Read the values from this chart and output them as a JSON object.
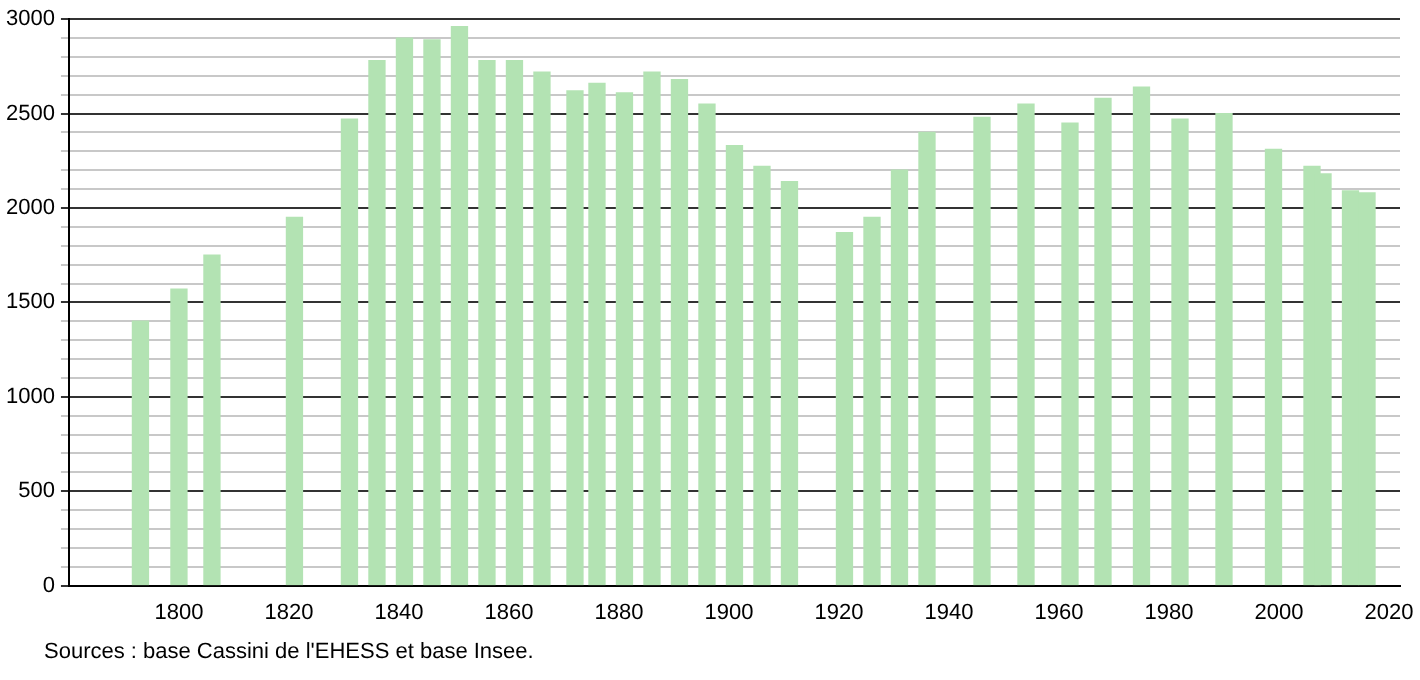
{
  "chart_data": {
    "type": "bar",
    "x": [
      1793,
      1800,
      1806,
      1821,
      1831,
      1836,
      1841,
      1846,
      1851,
      1856,
      1861,
      1866,
      1872,
      1876,
      1881,
      1886,
      1891,
      1896,
      1901,
      1906,
      1911,
      1921,
      1926,
      1931,
      1936,
      1946,
      1954,
      1962,
      1968,
      1975,
      1982,
      1990,
      1999,
      2006,
      2008,
      2013,
      2016
    ],
    "values": [
      1400,
      1570,
      1750,
      1950,
      2470,
      2780,
      2900,
      2890,
      2960,
      2780,
      2780,
      2720,
      2620,
      2660,
      2610,
      2720,
      2680,
      2550,
      2330,
      2220,
      2140,
      1870,
      1950,
      2200,
      2400,
      2480,
      2550,
      2450,
      2580,
      2640,
      2470,
      2500,
      2310,
      2220,
      2180,
      2090,
      2080
    ],
    "color": "#b3e3b3",
    "xlim": [
      1780,
      2022
    ],
    "xticks": [
      1800,
      1820,
      1840,
      1860,
      1880,
      1900,
      1920,
      1940,
      1960,
      1980,
      2000,
      2020
    ],
    "ylim": [
      0,
      3000
    ],
    "yticks": [
      0,
      {
        "value": 100,
        "label": null
      },
      {
        "value": 200,
        "label": null
      },
      {
        "value": 300,
        "label": null
      },
      {
        "value": 400,
        "label": null
      },
      500,
      {
        "value": 600,
        "label": null
      },
      {
        "value": 700,
        "label": null
      },
      {
        "value": 800,
        "label": null
      },
      {
        "value": 900,
        "label": null
      },
      1000,
      {
        "value": 1100,
        "label": null
      },
      {
        "value": 1200,
        "label": null
      },
      {
        "value": 1300,
        "label": null
      },
      {
        "value": 1400,
        "label": null
      },
      1500,
      {
        "value": 1600,
        "label": null
      },
      {
        "value": 1700,
        "label": null
      },
      {
        "value": 1800,
        "label": null
      },
      {
        "value": 1900,
        "label": null
      },
      2000,
      {
        "value": 2100,
        "label": null
      },
      {
        "value": 2200,
        "label": null
      },
      {
        "value": 2300,
        "label": null
      },
      {
        "value": 2400,
        "label": null
      },
      2500,
      {
        "value": 2600,
        "label": null
      },
      {
        "value": 2700,
        "label": null
      },
      {
        "value": 2800,
        "label": null
      },
      {
        "value": 2900,
        "label": null
      },
      3000
    ],
    "grid": "y",
    "legend": false,
    "annotations": [
      "Sources : base Cassini de l'EHESS et base Insee."
    ]
  }
}
